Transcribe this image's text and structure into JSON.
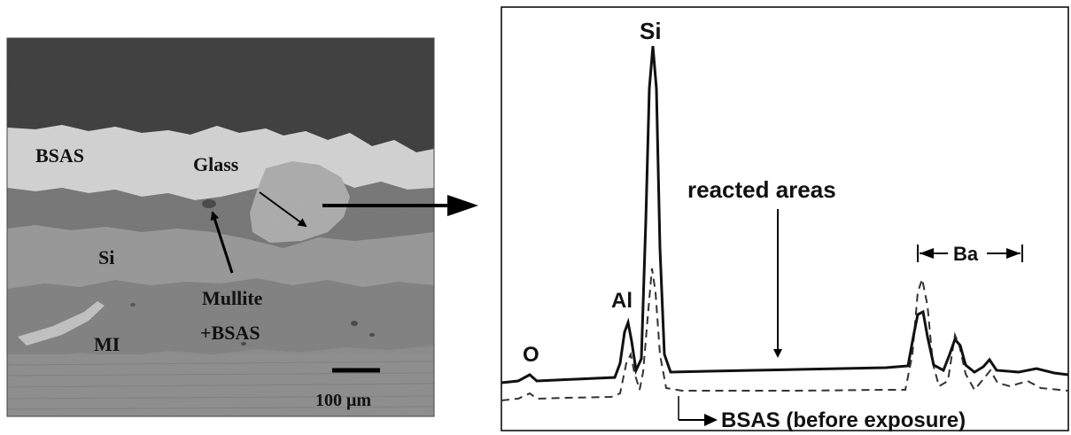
{
  "micrograph": {
    "labels": {
      "bsas": "BSAS",
      "glass": "Glass",
      "si": "Si",
      "mullite_line1": "Mullite",
      "mullite_line2": "+BSAS",
      "mi": "MI"
    },
    "scale_bar": "100 μm"
  },
  "spectrum": {
    "peak_labels": {
      "o": "O",
      "al": "Al",
      "si": "Si",
      "ba": "Ba"
    },
    "annotations": {
      "reacted_areas": "reacted areas",
      "bsas_before": "BSAS (before exposure)"
    },
    "colors": {
      "solid_line": "#111111",
      "dashed_line": "#333333"
    }
  }
}
